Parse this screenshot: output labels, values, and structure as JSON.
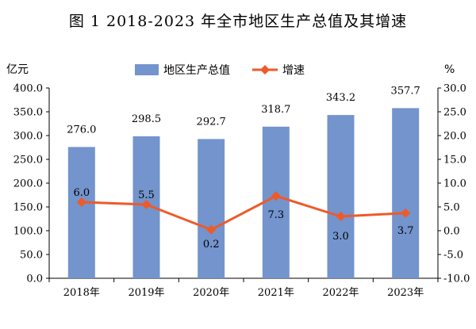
{
  "chart_data": {
    "type": "bar+line",
    "title": "图 1   2018-2023 年全市地区生产总值及其增速",
    "categories": [
      "2018年",
      "2019年",
      "2020年",
      "2021年",
      "2022年",
      "2023年"
    ],
    "series": [
      {
        "name": "地区生产总值",
        "type": "bar",
        "axis": "left",
        "values": [
          276.0,
          298.5,
          292.7,
          318.7,
          343.2,
          357.7
        ],
        "labels": [
          "276.0",
          "298.5",
          "292.7",
          "318.7",
          "343.2",
          "357.7"
        ],
        "color": "#7394cc"
      },
      {
        "name": "增速",
        "type": "line",
        "axis": "right",
        "values": [
          6.0,
          5.5,
          0.2,
          7.3,
          3.0,
          3.7
        ],
        "labels": [
          "6.0",
          "5.5",
          "0.2",
          "7.3",
          "3.0",
          "3.7"
        ],
        "color": "#ee5a2a",
        "marker": "diamond"
      }
    ],
    "y_left": {
      "unit": "亿元",
      "ylim": [
        0,
        400
      ],
      "ticks": [
        "0.0",
        "50.0",
        "100.0",
        "150.0",
        "200.0",
        "250.0",
        "300.0",
        "350.0",
        "400.0"
      ]
    },
    "y_right": {
      "unit": "%",
      "ylim": [
        -10,
        30
      ],
      "ticks": [
        "-10.0",
        "-5.0",
        "0.0",
        "5.0",
        "10.0",
        "15.0",
        "20.0",
        "25.0",
        "30.0"
      ]
    },
    "grid": false,
    "legend": "top-center"
  }
}
